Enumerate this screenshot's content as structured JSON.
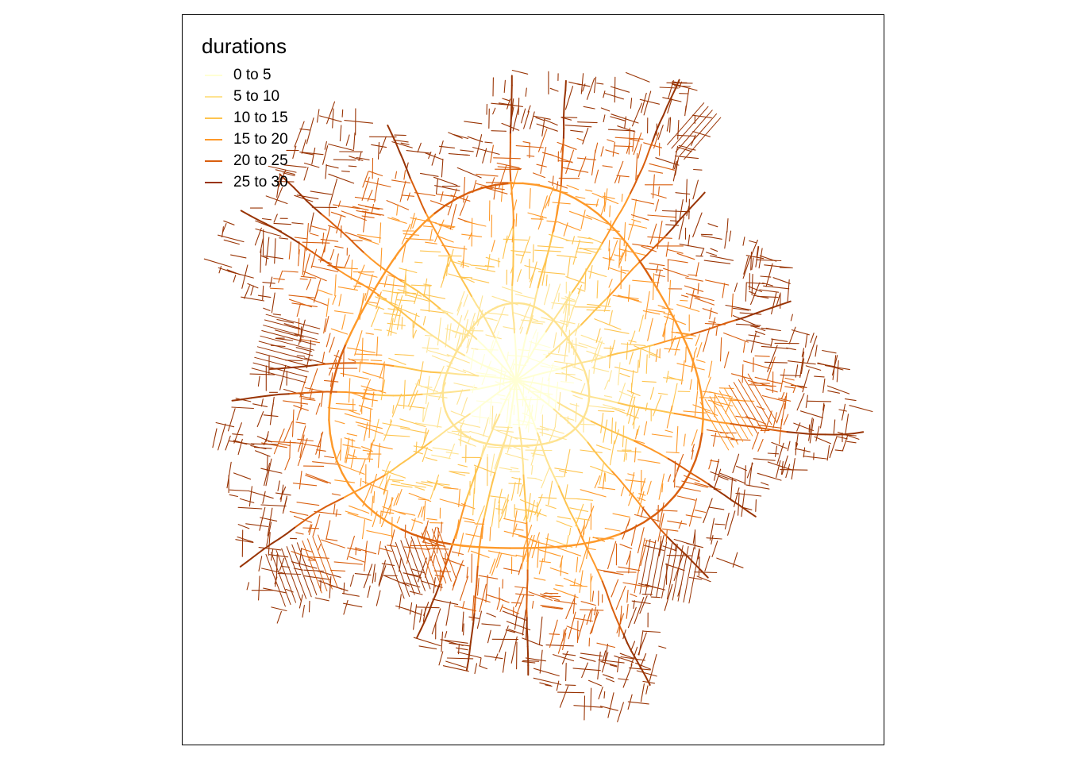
{
  "legend": {
    "title": "durations",
    "items": [
      {
        "label": "0 to 5",
        "color": "#FFFFD4"
      },
      {
        "label": "5 to 10",
        "color": "#FEE391"
      },
      {
        "label": "10 to 15",
        "color": "#FEC44F"
      },
      {
        "label": "15 to 20",
        "color": "#FE9929"
      },
      {
        "label": "20 to 25",
        "color": "#D95F0E"
      },
      {
        "label": "25 to 30",
        "color": "#993404"
      }
    ]
  },
  "map": {
    "variable": "durations",
    "classes": 6,
    "units_bin": 5,
    "range": [
      0,
      30
    ]
  }
}
